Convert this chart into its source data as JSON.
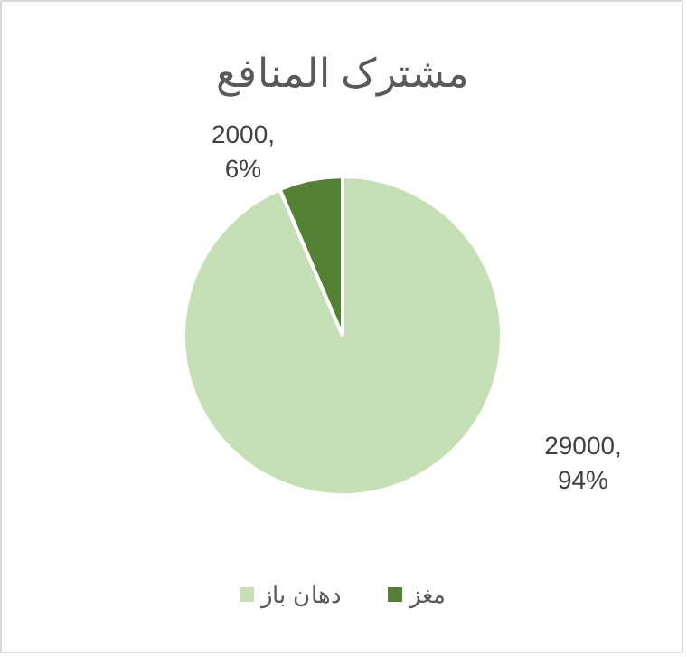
{
  "chart_data": {
    "type": "pie",
    "title": "مشترک المنافع",
    "categories": [
      "دهان باز",
      "مغز"
    ],
    "values": [
      29000,
      2000
    ],
    "colors": [
      "#c5e0b4",
      "#548235"
    ],
    "value_labels": [
      "29000,\n94%",
      "2000,\n6%"
    ],
    "legend": "bottom"
  }
}
